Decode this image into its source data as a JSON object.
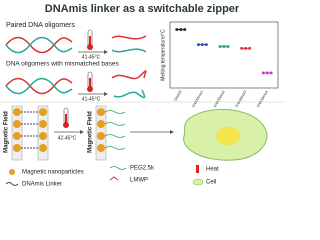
{
  "title": "DNAmis linker as a switchable zipper",
  "top_panel": {
    "paired_label": "Paired DNA oligomers",
    "mismatched_label": "DNA oligomers with mismatched bases",
    "temp_top": "41-45°C",
    "temp_mid": "41-45°C"
  },
  "bottom_panel": {
    "field_left": "Magnetic Field",
    "field_right": "Magnetic Field",
    "temp": "42-45°C"
  },
  "legend": {
    "nanoparticles": "Magnetic nanoparticles",
    "linker": "DNAmis Linker",
    "peg": "PEG2.5k",
    "lmwp": "LMWP",
    "heat": "Heat",
    "cell": "Cell"
  },
  "chart_data": {
    "type": "scatter",
    "y_label": "Melting temperature/°C",
    "categories": [
      "DNA33",
      "DNA33mis1",
      "DNA33mis2",
      "DNA33mis3",
      "DNA33mis4"
    ],
    "series": [
      {
        "name": "Tm",
        "values": [
          56,
          48,
          47,
          46,
          33
        ]
      }
    ],
    "colors": [
      "#222222",
      "#3344cc",
      "#22aa55",
      "#dd3333",
      "#cc33cc"
    ],
    "ylim": [
      25,
      60
    ]
  }
}
